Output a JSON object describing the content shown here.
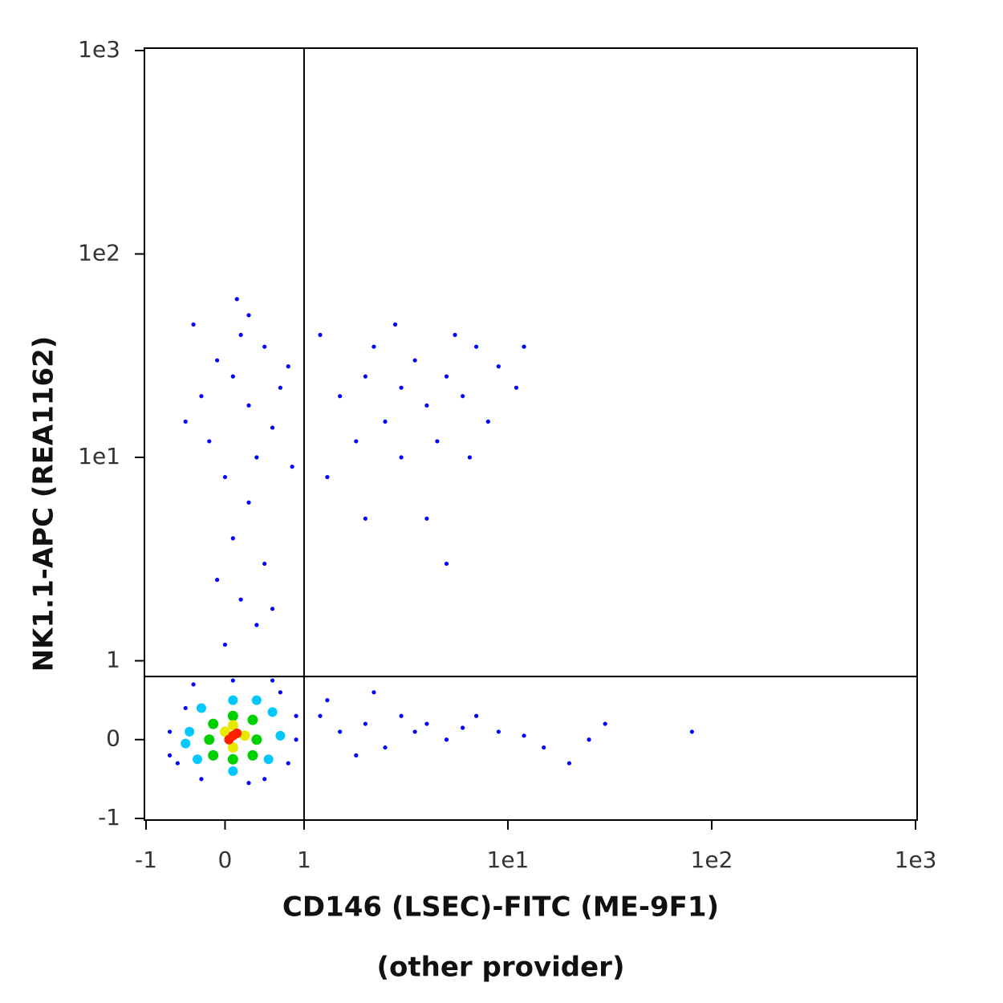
{
  "chart_data": {
    "type": "scatter",
    "xlabel": "CD146 (LSEC)-FITC (ME-9F1)",
    "xlabel_note": "(other provider)",
    "ylabel": "NK1.1-APC (REA1162)",
    "xscale": "biexponential",
    "yscale": "biexponential",
    "xlim": [
      -1,
      1000
    ],
    "ylim": [
      -1,
      1000
    ],
    "xticks": [
      -1,
      0,
      1,
      {
        "value": 10,
        "label": "1e1"
      },
      {
        "value": 100,
        "label": "1e2"
      },
      {
        "value": 1000,
        "label": "1e3"
      }
    ],
    "yticks": [
      -1,
      0,
      1,
      {
        "value": 10,
        "label": "1e1"
      },
      {
        "value": 100,
        "label": "1e2"
      },
      {
        "value": 1000,
        "label": "1e3"
      }
    ],
    "gates": {
      "x": 1,
      "y": 0.8
    },
    "series": [
      {
        "color": "#0000ff",
        "x": [
          -0.3,
          -0.1,
          0.1,
          0.3,
          0.5,
          0.7,
          0.2,
          -0.2,
          0.4,
          0.6,
          0.0,
          0.3,
          0.1,
          0.5,
          -0.1,
          0.2,
          0.4,
          0.0,
          0.6,
          0.3,
          -0.4,
          0.8,
          0.15,
          -0.5,
          0.85,
          1.5,
          2,
          2.5,
          3,
          3.5,
          4,
          5,
          6,
          7,
          8,
          1.2,
          2.2,
          4.5,
          3,
          5.5,
          9,
          11,
          1.8,
          2.8,
          6.5,
          1.3,
          4,
          5,
          2,
          12,
          1.2,
          1.5,
          2,
          2.5,
          3,
          3.5,
          4,
          5,
          6,
          7,
          1.3,
          1.8,
          2.2,
          9,
          12,
          15,
          20,
          25,
          30,
          80,
          -0.7,
          -0.6,
          -0.5,
          0.8,
          0.9,
          0.7,
          -0.3,
          0.3,
          0.6,
          -0.4,
          0.1,
          0.9,
          -0.7,
          0.5
        ],
        "values": [
          20,
          30,
          25,
          18,
          35,
          22,
          40,
          12,
          10,
          14,
          8,
          6,
          4,
          3,
          2.5,
          2,
          1.5,
          1.2,
          1.8,
          50,
          45,
          28,
          60,
          15,
          9,
          20,
          25,
          15,
          22,
          30,
          18,
          25,
          20,
          35,
          15,
          40,
          35,
          12,
          10,
          40,
          28,
          22,
          12,
          45,
          10,
          8,
          5,
          3,
          5,
          35,
          0.3,
          0.1,
          0.2,
          -0.1,
          0.3,
          0.1,
          0.2,
          0.0,
          0.15,
          0.3,
          0.5,
          -0.2,
          0.6,
          0.1,
          0.05,
          -0.1,
          -0.3,
          0.0,
          0.2,
          0.1,
          0.1,
          -0.3,
          0.4,
          -0.3,
          0.3,
          0.6,
          -0.5,
          -0.55,
          0.75,
          0.7,
          0.75,
          0.0,
          -0.2,
          -0.5
        ]
      },
      {
        "color": "#00c8ff",
        "x": [
          -0.45,
          -0.35,
          0.55,
          0.6,
          -0.3,
          0.1,
          0.1,
          0.4,
          0.7,
          -0.5
        ],
        "values": [
          0.1,
          -0.25,
          -0.25,
          0.35,
          0.4,
          0.5,
          -0.4,
          0.5,
          0.05,
          -0.05
        ]
      },
      {
        "color": "#00d000",
        "x": [
          -0.2,
          0.4,
          0.1,
          0.1,
          -0.15,
          0.35,
          0.35,
          -0.15
        ],
        "values": [
          0.0,
          0.0,
          0.3,
          -0.25,
          0.2,
          -0.2,
          0.25,
          -0.2
        ]
      },
      {
        "color": "#e8e800",
        "x": [
          0.0,
          0.25,
          0.1,
          0.1
        ],
        "values": [
          0.1,
          0.05,
          0.18,
          -0.1
        ]
      },
      {
        "color": "#ff2000",
        "x": [
          0.1,
          0.05,
          0.15
        ],
        "values": [
          0.05,
          0.0,
          0.08
        ]
      }
    ]
  }
}
